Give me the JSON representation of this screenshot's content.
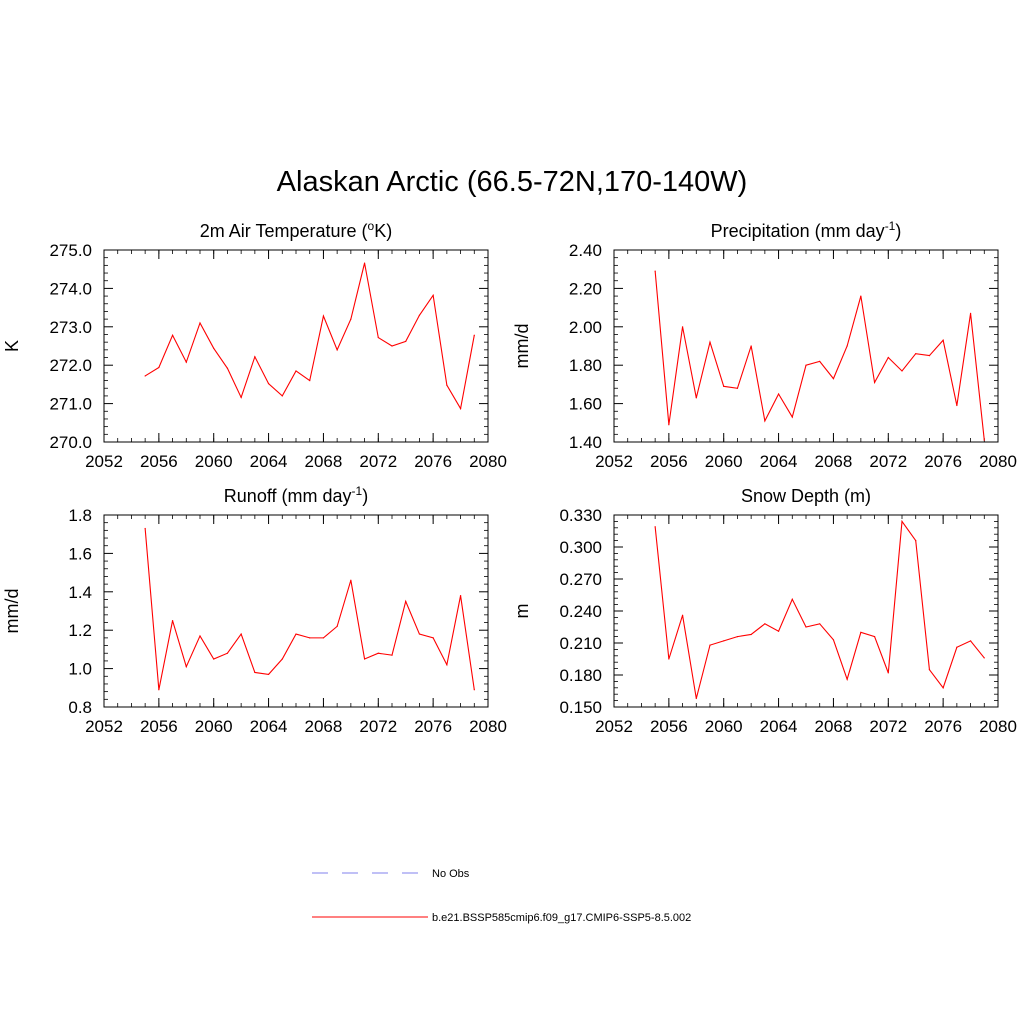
{
  "title": "Alaskan Arctic (66.5-72N,170-140W)",
  "colors": {
    "model_line": "#ff0000",
    "obs_line": "#9a9af0",
    "axis": "#000000"
  },
  "legend": [
    {
      "label": "No Obs",
      "style": "dashed",
      "color": "#9a9af0"
    },
    {
      "label": "b.e21.BSSP585cmip6.f09_g17.CMIP6-SSP5-8.5.002",
      "style": "solid",
      "color": "#ff0000"
    }
  ],
  "chart_data": [
    {
      "type": "line",
      "title": "2m Air Temperature (°K)",
      "title_parts": {
        "pre": "2m Air Temperature (",
        "sup": "o",
        "post": "K)"
      },
      "ylabel": "K",
      "xlim": [
        2052,
        2080
      ],
      "ylim": [
        270.0,
        275.0
      ],
      "xticks": [
        2052,
        2056,
        2060,
        2064,
        2068,
        2072,
        2076,
        2080
      ],
      "yticks": [
        "270.0",
        "271.0",
        "272.0",
        "273.0",
        "274.0",
        "275.0"
      ],
      "x": [
        2055,
        2056,
        2057,
        2058,
        2059,
        2060,
        2061,
        2062,
        2063,
        2064,
        2065,
        2066,
        2067,
        2068,
        2069,
        2070,
        2071,
        2072,
        2073,
        2074,
        2075,
        2076,
        2077,
        2078,
        2079
      ],
      "series": [
        {
          "name": "b.e21.BSSP585cmip6.f09_g17.CMIP6-SSP5-8.5.002",
          "values": [
            271.72,
            271.94,
            272.78,
            272.08,
            273.1,
            272.44,
            271.92,
            271.16,
            272.22,
            271.52,
            271.2,
            271.85,
            271.6,
            273.28,
            272.4,
            273.2,
            274.66,
            272.72,
            272.5,
            272.62,
            273.3,
            273.82,
            271.48,
            270.87,
            272.78
          ]
        }
      ]
    },
    {
      "type": "line",
      "title": "Precipitation (mm day-1)",
      "title_parts": {
        "pre": "Precipitation (mm day",
        "sup": "-1",
        "post": ")"
      },
      "ylabel": "mm/d",
      "xlim": [
        2052,
        2080
      ],
      "ylim": [
        1.4,
        2.4
      ],
      "xticks": [
        2052,
        2056,
        2060,
        2064,
        2068,
        2072,
        2076,
        2080
      ],
      "yticks": [
        "1.40",
        "1.60",
        "1.80",
        "2.00",
        "2.20",
        "2.40"
      ],
      "x": [
        2055,
        2056,
        2057,
        2058,
        2059,
        2060,
        2061,
        2062,
        2063,
        2064,
        2065,
        2066,
        2067,
        2068,
        2069,
        2070,
        2071,
        2072,
        2073,
        2074,
        2075,
        2076,
        2077,
        2078,
        2079
      ],
      "series": [
        {
          "name": "b.e21.BSSP585cmip6.f09_g17.CMIP6-SSP5-8.5.002",
          "values": [
            2.29,
            1.49,
            2.0,
            1.63,
            1.92,
            1.69,
            1.68,
            1.9,
            1.51,
            1.65,
            1.53,
            1.8,
            1.82,
            1.73,
            1.9,
            2.16,
            1.71,
            1.84,
            1.77,
            1.86,
            1.85,
            1.93,
            1.59,
            2.07,
            1.41
          ]
        }
      ]
    },
    {
      "type": "line",
      "title": "Runoff (mm day-1)",
      "title_parts": {
        "pre": "Runoff (mm day",
        "sup": "-1",
        "post": ")"
      },
      "ylabel": "mm/d",
      "xlim": [
        2052,
        2080
      ],
      "ylim": [
        0.8,
        1.8
      ],
      "xticks": [
        2052,
        2056,
        2060,
        2064,
        2068,
        2072,
        2076,
        2080
      ],
      "yticks": [
        "0.8",
        "1.0",
        "1.2",
        "1.4",
        "1.6",
        "1.8"
      ],
      "x": [
        2055,
        2056,
        2057,
        2058,
        2059,
        2060,
        2061,
        2062,
        2063,
        2064,
        2065,
        2066,
        2067,
        2068,
        2069,
        2070,
        2071,
        2072,
        2073,
        2074,
        2075,
        2076,
        2077,
        2078,
        2079
      ],
      "series": [
        {
          "name": "b.e21.BSSP585cmip6.f09_g17.CMIP6-SSP5-8.5.002",
          "values": [
            1.73,
            0.89,
            1.25,
            1.01,
            1.17,
            1.05,
            1.08,
            1.18,
            0.98,
            0.97,
            1.05,
            1.18,
            1.16,
            1.16,
            1.22,
            1.46,
            1.05,
            1.08,
            1.07,
            1.35,
            1.18,
            1.16,
            1.02,
            1.38,
            0.89
          ]
        }
      ]
    },
    {
      "type": "line",
      "title": "Snow Depth (m)",
      "title_parts": {
        "pre": "Snow Depth (m)",
        "sup": "",
        "post": ""
      },
      "ylabel": "m",
      "xlim": [
        2052,
        2080
      ],
      "ylim": [
        0.15,
        0.33
      ],
      "xticks": [
        2052,
        2056,
        2060,
        2064,
        2068,
        2072,
        2076,
        2080
      ],
      "yticks": [
        "0.150",
        "0.180",
        "0.210",
        "0.240",
        "0.270",
        "0.300",
        "0.330"
      ],
      "x": [
        2055,
        2056,
        2057,
        2058,
        2059,
        2060,
        2061,
        2062,
        2063,
        2064,
        2065,
        2066,
        2067,
        2068,
        2069,
        2070,
        2071,
        2072,
        2073,
        2074,
        2075,
        2076,
        2077,
        2078,
        2079
      ],
      "series": [
        {
          "name": "b.e21.BSSP585cmip6.f09_g17.CMIP6-SSP5-8.5.002",
          "values": [
            0.319,
            0.195,
            0.236,
            0.158,
            0.208,
            0.212,
            0.216,
            0.218,
            0.228,
            0.221,
            0.251,
            0.225,
            0.228,
            0.213,
            0.176,
            0.22,
            0.216,
            0.182,
            0.324,
            0.306,
            0.185,
            0.168,
            0.206,
            0.212,
            0.196
          ]
        }
      ]
    }
  ]
}
